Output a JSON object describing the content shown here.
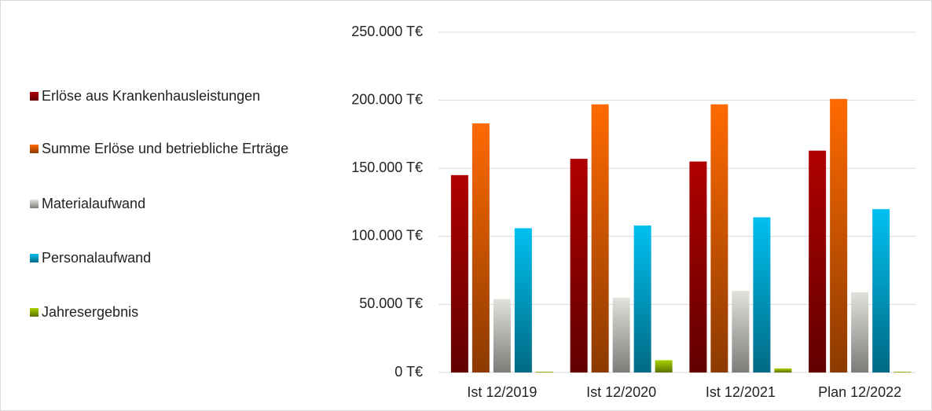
{
  "chart_data": {
    "type": "bar",
    "categories": [
      "Ist 12/2019",
      "Ist 12/2020",
      "Ist 12/2021",
      "Plan 12/2022"
    ],
    "series": [
      {
        "name": "Erlöse aus Krankenhausleistungen",
        "color": "#b00000",
        "values": [
          145000,
          157000,
          155000,
          163000
        ]
      },
      {
        "name": "Summe Erlöse und betriebliche Erträge",
        "color": "#ff6a00",
        "values": [
          183000,
          197000,
          197000,
          201000
        ]
      },
      {
        "name": "Materialaufwand",
        "color": "#e2e2dc",
        "values": [
          54000,
          55000,
          60000,
          59000
        ]
      },
      {
        "name": "Personalaufwand",
        "color": "#00c0f0",
        "values": [
          106000,
          108000,
          114000,
          120000
        ]
      },
      {
        "name": "Jahresergebnis",
        "color": "#a8d000",
        "values": [
          500,
          9000,
          3000,
          500
        ]
      }
    ],
    "ylim": [
      0,
      250000
    ],
    "yticks": [
      {
        "value": 0,
        "label": "0 T€"
      },
      {
        "value": 50000,
        "label": "50.000 T€"
      },
      {
        "value": 100000,
        "label": "100.000 T€"
      },
      {
        "value": 150000,
        "label": "150.000 T€"
      },
      {
        "value": 200000,
        "label": "200.000 T€"
      },
      {
        "value": 250000,
        "label": "250.000 T€"
      }
    ],
    "grid": true
  }
}
